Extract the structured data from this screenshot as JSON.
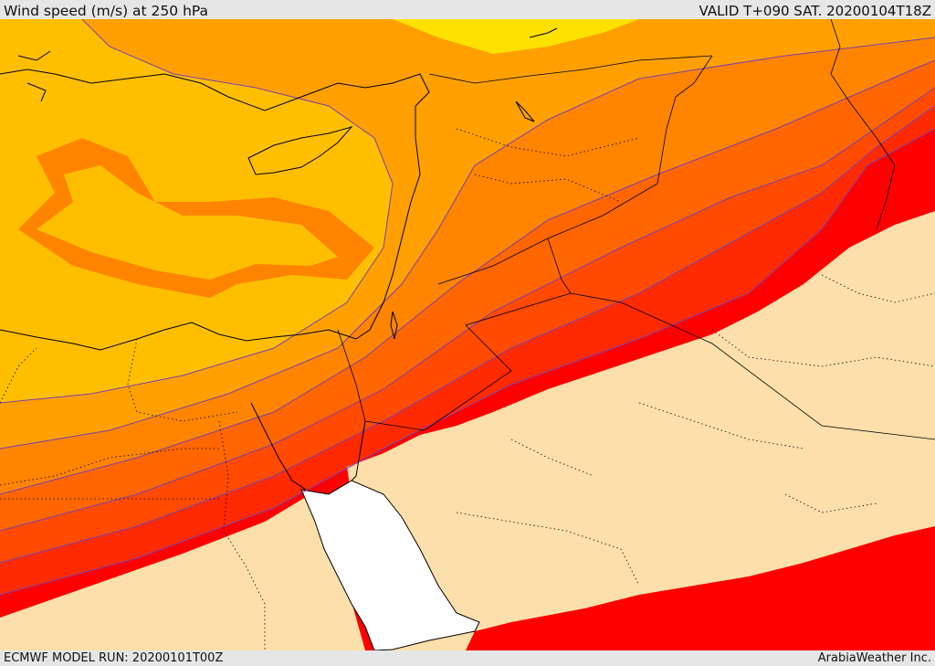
{
  "header": {
    "title": "Wind speed (m/s) at 250 hPa",
    "valid": "VALID T+090 SAT. 20200104T18Z"
  },
  "footer": {
    "model_run": "ECMWF MODEL RUN: 20200101T00Z",
    "credit": "ArabiaWeather Inc."
  },
  "colors": {
    "band_lightest": "#fcdfaa",
    "band_1": "#ff0000",
    "band_2": "#ff2a00",
    "band_3": "#ff4a00",
    "band_4": "#ff6600",
    "band_5": "#ff8400",
    "band_6": "#ffa000",
    "band_7": "#ffbf00",
    "band_8": "#ffe100",
    "sea": "#ffffff",
    "contour": "#7a3fb0",
    "coast": "#000000"
  }
}
